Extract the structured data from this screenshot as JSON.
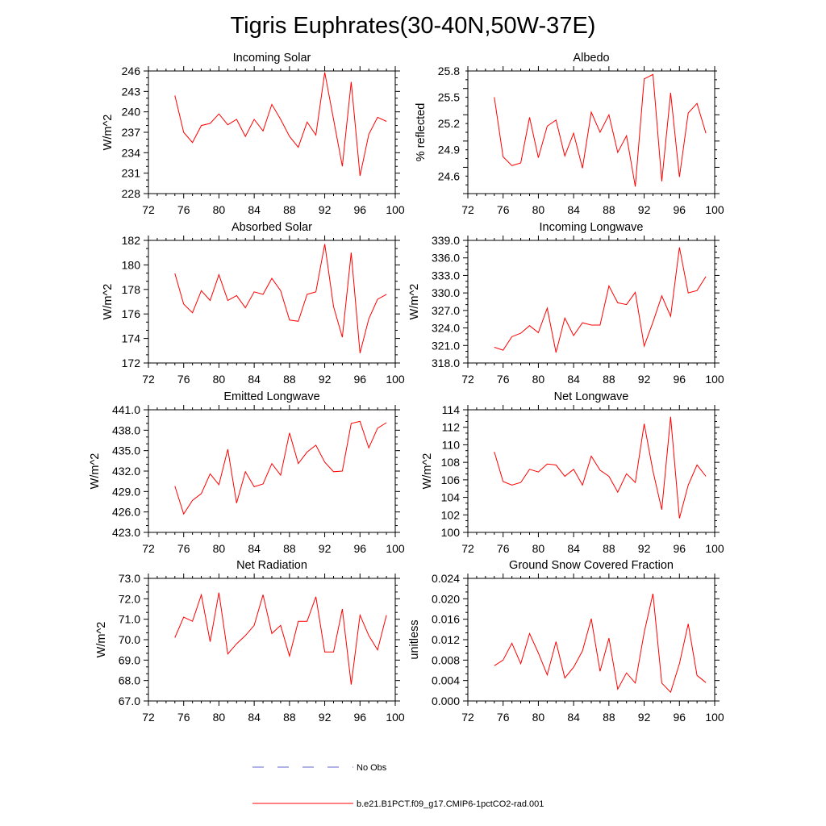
{
  "title": "Tigris Euphrates(30-40N,50W-37E)",
  "colors": {
    "model": "#ff0000",
    "obs": "#6666cc",
    "axis": "#000000"
  },
  "legend": {
    "obs_label": "No Obs",
    "model_label": "b.e21.B1PCT.f09_g17.CMIP6-1pctCO2-rad.001"
  },
  "chart_data": [
    {
      "type": "line",
      "title": "Incoming Solar",
      "ylabel": "W/m^2",
      "xlim": [
        72,
        100
      ],
      "ylim": [
        228,
        246
      ],
      "xticks": [
        72,
        76,
        80,
        84,
        88,
        92,
        96,
        100
      ],
      "xtick_labels": [
        "72",
        "76",
        "80",
        "84",
        "88",
        "92",
        "96",
        "100"
      ],
      "yticks": [
        228,
        231,
        234,
        237,
        240,
        243,
        246
      ],
      "ytick_labels": [
        "228",
        "231",
        "234",
        "237",
        "240",
        "243",
        "246"
      ],
      "x": [
        75,
        76,
        77,
        78,
        79,
        80,
        81,
        82,
        83,
        84,
        85,
        86,
        87,
        88,
        89,
        90,
        91,
        92,
        93,
        94,
        95,
        96,
        97,
        98,
        99
      ],
      "series": [
        {
          "values": [
            242.4,
            237.0,
            235.5,
            238.0,
            238.3,
            239.7,
            238.1,
            238.9,
            236.4,
            238.9,
            237.2,
            241.1,
            238.9,
            236.4,
            234.8,
            238.5,
            236.6,
            245.8,
            238.9,
            232.0,
            244.4,
            230.6,
            236.7,
            239.2,
            238.6
          ]
        }
      ]
    },
    {
      "type": "line",
      "title": "Albedo",
      "ylabel": "% reflected",
      "xlim": [
        72,
        100
      ],
      "ylim": [
        24.4,
        25.8
      ],
      "xticks": [
        72,
        76,
        80,
        84,
        88,
        92,
        96,
        100
      ],
      "xtick_labels": [
        "72",
        "76",
        "80",
        "84",
        "88",
        "92",
        "96",
        "100"
      ],
      "yticks": [
        24.6,
        24.9,
        25.2,
        25.5,
        25.8
      ],
      "ytick_labels": [
        "24.6",
        "24.9",
        "25.2",
        "25.5",
        "25.8"
      ],
      "x": [
        75,
        76,
        77,
        78,
        79,
        80,
        81,
        82,
        83,
        84,
        85,
        86,
        87,
        88,
        89,
        90,
        91,
        92,
        93,
        94,
        95,
        96,
        97,
        98,
        99
      ],
      "series": [
        {
          "values": [
            25.5,
            24.82,
            24.72,
            24.75,
            25.27,
            24.81,
            25.17,
            25.24,
            24.83,
            25.09,
            24.69,
            25.33,
            25.1,
            25.3,
            24.87,
            25.06,
            24.48,
            25.71,
            25.76,
            24.54,
            25.55,
            24.59,
            25.32,
            25.43,
            25.09
          ]
        }
      ]
    },
    {
      "type": "line",
      "title": "Absorbed Solar",
      "ylabel": "W/m^2",
      "xlim": [
        72,
        100
      ],
      "ylim": [
        172,
        182
      ],
      "xticks": [
        72,
        76,
        80,
        84,
        88,
        92,
        96,
        100
      ],
      "xtick_labels": [
        "72",
        "76",
        "80",
        "84",
        "88",
        "92",
        "96",
        "100"
      ],
      "yticks": [
        172,
        174,
        176,
        178,
        180,
        182
      ],
      "ytick_labels": [
        "172",
        "174",
        "176",
        "178",
        "180",
        "182"
      ],
      "x": [
        75,
        76,
        77,
        78,
        79,
        80,
        81,
        82,
        83,
        84,
        85,
        86,
        87,
        88,
        89,
        90,
        91,
        92,
        93,
        94,
        95,
        96,
        97,
        98,
        99
      ],
      "series": [
        {
          "values": [
            179.3,
            176.8,
            176.1,
            177.9,
            177.1,
            179.2,
            177.1,
            177.5,
            176.5,
            177.8,
            177.6,
            178.9,
            177.9,
            175.5,
            175.4,
            177.6,
            177.8,
            181.7,
            176.6,
            174.1,
            181.0,
            172.8,
            175.6,
            177.2,
            177.6
          ]
        }
      ]
    },
    {
      "type": "line",
      "title": "Incoming Longwave",
      "ylabel": "W/m^2",
      "xlim": [
        72,
        100
      ],
      "ylim": [
        318,
        339
      ],
      "xticks": [
        72,
        76,
        80,
        84,
        88,
        92,
        96,
        100
      ],
      "xtick_labels": [
        "72",
        "76",
        "80",
        "84",
        "88",
        "92",
        "96",
        "100"
      ],
      "yticks": [
        318,
        321,
        324,
        327,
        330,
        333,
        336,
        339
      ],
      "ytick_labels": [
        "318.0",
        "321.0",
        "324.0",
        "327.0",
        "330.0",
        "333.0",
        "336.0",
        "339.0"
      ],
      "x": [
        75,
        76,
        77,
        78,
        79,
        80,
        81,
        82,
        83,
        84,
        85,
        86,
        87,
        88,
        89,
        90,
        91,
        92,
        93,
        94,
        95,
        96,
        97,
        98,
        99
      ],
      "series": [
        {
          "values": [
            320.7,
            320.2,
            322.5,
            323.1,
            324.4,
            323.2,
            327.4,
            319.8,
            325.7,
            322.7,
            324.9,
            324.5,
            324.5,
            331.2,
            328.3,
            328.0,
            330.1,
            320.9,
            325.0,
            329.5,
            326.0,
            337.8,
            330.0,
            330.4,
            332.8
          ]
        }
      ]
    },
    {
      "type": "line",
      "title": "Emitted Longwave",
      "ylabel": "W/m^2",
      "xlim": [
        72,
        100
      ],
      "ylim": [
        423,
        441
      ],
      "xticks": [
        72,
        76,
        80,
        84,
        88,
        92,
        96,
        100
      ],
      "xtick_labels": [
        "72",
        "76",
        "80",
        "84",
        "88",
        "92",
        "96",
        "100"
      ],
      "yticks": [
        423,
        426,
        429,
        432,
        435,
        438,
        441
      ],
      "ytick_labels": [
        "423.0",
        "426.0",
        "429.0",
        "432.0",
        "435.0",
        "438.0",
        "441.0"
      ],
      "x": [
        75,
        76,
        77,
        78,
        79,
        80,
        81,
        82,
        83,
        84,
        85,
        86,
        87,
        88,
        89,
        90,
        91,
        92,
        93,
        94,
        95,
        96,
        97,
        98,
        99
      ],
      "series": [
        {
          "values": [
            429.8,
            425.7,
            427.7,
            428.7,
            431.6,
            430.0,
            435.2,
            427.3,
            431.9,
            429.7,
            430.1,
            433.1,
            431.4,
            437.6,
            433.1,
            434.8,
            435.8,
            433.3,
            431.9,
            432.0,
            439.0,
            439.3,
            435.4,
            438.3,
            439.1
          ]
        }
      ]
    },
    {
      "type": "line",
      "title": "Net Longwave",
      "ylabel": "W/m^2",
      "xlim": [
        72,
        100
      ],
      "ylim": [
        100,
        114
      ],
      "xticks": [
        72,
        76,
        80,
        84,
        88,
        92,
        96,
        100
      ],
      "xtick_labels": [
        "72",
        "76",
        "80",
        "84",
        "88",
        "92",
        "96",
        "100"
      ],
      "yticks": [
        100,
        102,
        104,
        106,
        108,
        110,
        112,
        114
      ],
      "ytick_labels": [
        "100",
        "102",
        "104",
        "106",
        "108",
        "110",
        "112",
        "114"
      ],
      "x": [
        75,
        76,
        77,
        78,
        79,
        80,
        81,
        82,
        83,
        84,
        85,
        86,
        87,
        88,
        89,
        90,
        91,
        92,
        93,
        94,
        95,
        96,
        97,
        98,
        99
      ],
      "series": [
        {
          "values": [
            109.2,
            105.8,
            105.4,
            105.7,
            107.2,
            106.9,
            107.8,
            107.7,
            106.4,
            107.2,
            105.4,
            108.7,
            107.1,
            106.4,
            104.6,
            106.7,
            105.7,
            112.4,
            107.0,
            102.6,
            113.2,
            101.6,
            105.4,
            107.7,
            106.4
          ]
        }
      ]
    },
    {
      "type": "line",
      "title": "Net Radiation",
      "ylabel": "W/m^2",
      "xlim": [
        72,
        100
      ],
      "ylim": [
        67,
        73
      ],
      "xticks": [
        72,
        76,
        80,
        84,
        88,
        92,
        96,
        100
      ],
      "xtick_labels": [
        "72",
        "76",
        "80",
        "84",
        "88",
        "92",
        "96",
        "100"
      ],
      "yticks": [
        67,
        68,
        69,
        70,
        71,
        72,
        73
      ],
      "ytick_labels": [
        "67.0",
        "68.0",
        "69.0",
        "70.0",
        "71.0",
        "72.0",
        "73.0"
      ],
      "x": [
        75,
        76,
        77,
        78,
        79,
        80,
        81,
        82,
        83,
        84,
        85,
        86,
        87,
        88,
        89,
        90,
        91,
        92,
        93,
        94,
        95,
        96,
        97,
        98,
        99
      ],
      "series": [
        {
          "values": [
            70.1,
            71.1,
            70.9,
            72.2,
            69.9,
            72.3,
            69.3,
            69.8,
            70.2,
            70.7,
            72.2,
            70.3,
            70.7,
            69.2,
            70.9,
            70.9,
            72.1,
            69.4,
            69.4,
            71.5,
            67.8,
            71.2,
            70.2,
            69.5,
            71.2
          ]
        }
      ]
    },
    {
      "type": "line",
      "title": "Ground Snow Covered Fraction",
      "ylabel": "unitless",
      "xlim": [
        72,
        100
      ],
      "ylim": [
        0,
        0.024
      ],
      "xticks": [
        72,
        76,
        80,
        84,
        88,
        92,
        96,
        100
      ],
      "xtick_labels": [
        "72",
        "76",
        "80",
        "84",
        "88",
        "92",
        "96",
        "100"
      ],
      "yticks": [
        0,
        0.004,
        0.008,
        0.012,
        0.016,
        0.02,
        0.024
      ],
      "ytick_labels": [
        "0.000",
        "0.004",
        "0.008",
        "0.012",
        "0.016",
        "0.020",
        "0.024"
      ],
      "x": [
        75,
        76,
        77,
        78,
        79,
        80,
        81,
        82,
        83,
        84,
        85,
        86,
        87,
        88,
        89,
        90,
        91,
        92,
        93,
        94,
        95,
        96,
        97,
        98,
        99
      ],
      "series": [
        {
          "values": [
            0.0069,
            0.008,
            0.0113,
            0.0073,
            0.0132,
            0.0094,
            0.0051,
            0.0116,
            0.0045,
            0.0066,
            0.0098,
            0.0161,
            0.0058,
            0.0123,
            0.0023,
            0.0055,
            0.0035,
            0.0134,
            0.021,
            0.0035,
            0.0017,
            0.0073,
            0.0151,
            0.005,
            0.0036
          ]
        }
      ]
    }
  ]
}
